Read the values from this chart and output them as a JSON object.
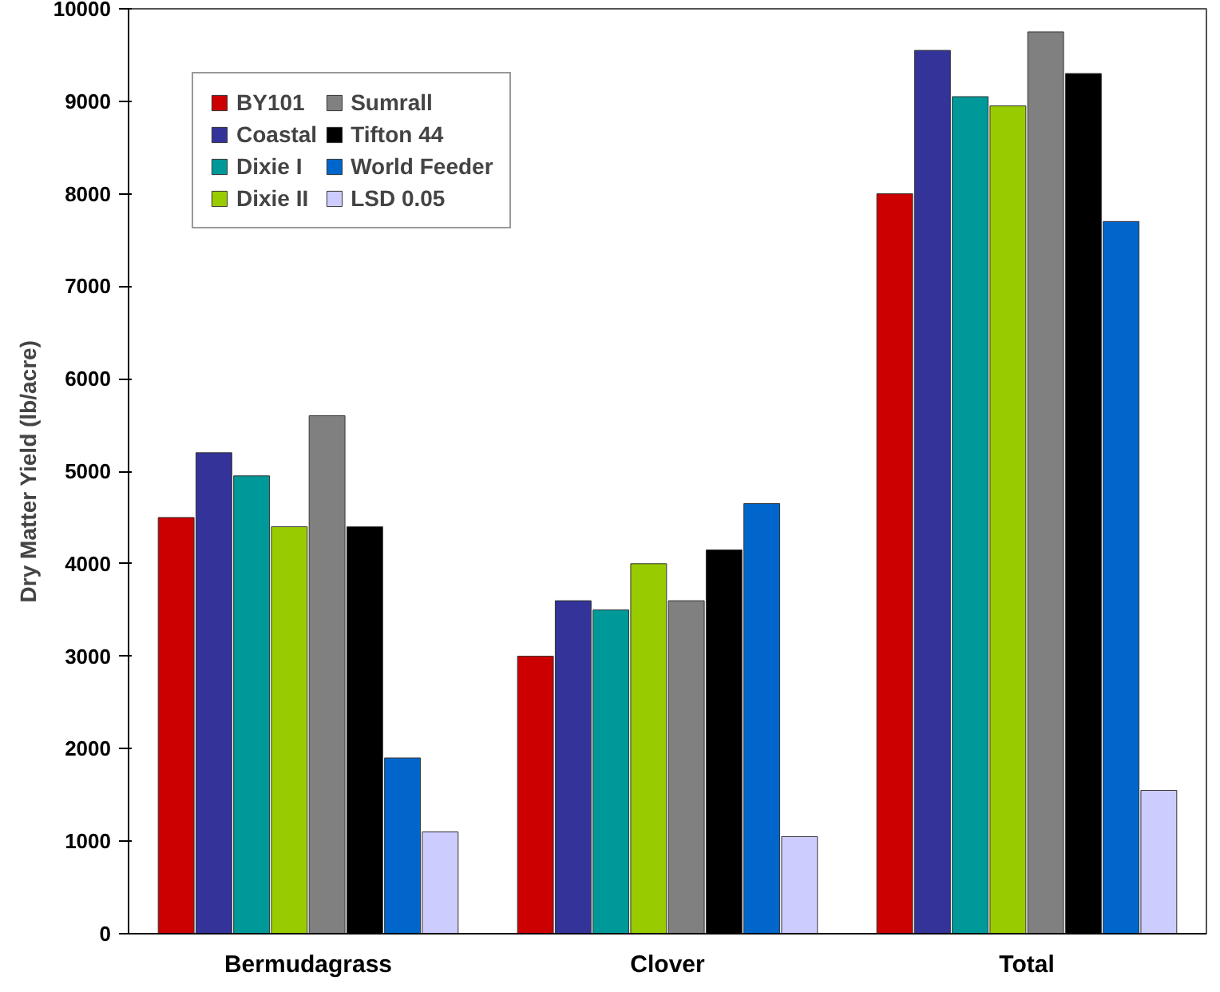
{
  "chart_data": {
    "type": "bar",
    "ylabel": "Dry Matter Yield (lb/acre)",
    "categories": [
      "Bermudagrass",
      "Clover",
      "Total"
    ],
    "series": [
      {
        "name": "BY101",
        "color": "#cc0000",
        "values": [
          4500,
          3000,
          8000
        ]
      },
      {
        "name": "Coastal",
        "color": "#333399",
        "values": [
          5200,
          3600,
          9550
        ]
      },
      {
        "name": "Dixie I",
        "color": "#009999",
        "values": [
          4950,
          3500,
          9050
        ]
      },
      {
        "name": "Dixie II",
        "color": "#99cc00",
        "values": [
          4400,
          4000,
          8950
        ]
      },
      {
        "name": "Sumrall",
        "color": "#808080",
        "values": [
          5600,
          3600,
          9750
        ]
      },
      {
        "name": "Tifton 44",
        "color": "#000000",
        "values": [
          4400,
          4150,
          9300
        ]
      },
      {
        "name": "World Feeder",
        "color": "#0066cc",
        "values": [
          1900,
          4650,
          7700
        ]
      },
      {
        "name": "LSD 0.05",
        "color": "#ccccff",
        "values": [
          1100,
          1050,
          1550
        ]
      }
    ],
    "ylim": [
      0,
      10000
    ],
    "yticks": [
      0,
      1000,
      2000,
      3000,
      4000,
      5000,
      6000,
      7000,
      8000,
      9000,
      10000
    ],
    "grid": false,
    "legend": "top left"
  }
}
